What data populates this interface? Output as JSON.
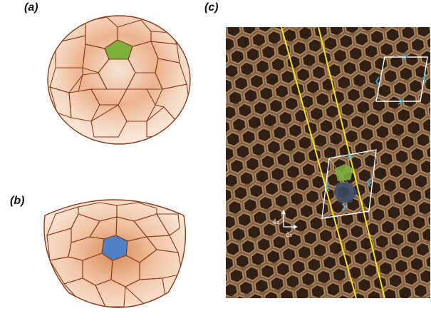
{
  "panels": {
    "a": {
      "label": "(a)"
    },
    "b": {
      "label": "(b)"
    },
    "c": {
      "label": "(c)"
    }
  },
  "vectors": {
    "e1": "ê₁",
    "e2": "ê₂"
  },
  "colors": {
    "cell_edge": "#8a3a1a",
    "cell_fill": "#f7dcc6",
    "shade": "#c8743a",
    "pentagon_green": "#7fb13f",
    "pentagon_blue": "#4f7fc4",
    "honeycomb_bg": "#3a2416",
    "honeycomb_wall": "#caa27a",
    "guide_line": "#f2e21d",
    "frame": "#ffffff",
    "arrow": "#3aaee0"
  }
}
